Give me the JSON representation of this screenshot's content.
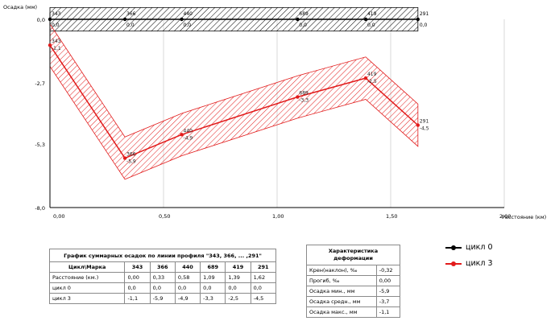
{
  "chart_data": {
    "type": "line",
    "ylabel": "Осадка (мм)",
    "xlabel": "Расстояние (км)",
    "xlim": [
      0,
      2.0
    ],
    "ylim": [
      -8.0,
      0.0
    ],
    "x_ticks": [
      "0,00",
      "0,50",
      "1,00",
      "1,50",
      "2,00"
    ],
    "y_ticks": [
      {
        "value": 0.0,
        "label": "0,0"
      },
      {
        "value": -2.7,
        "label": "-2,7"
      },
      {
        "value": -5.3,
        "label": "-5,3"
      },
      {
        "value": -8.0,
        "label": "-8,0"
      }
    ],
    "grid": "vertical",
    "legend_position": "right",
    "series": [
      {
        "name": "цикл 0",
        "color": "#000000",
        "x": [
          0.0,
          0.33,
          0.58,
          1.09,
          1.39,
          1.62
        ],
        "y": [
          0.0,
          0.0,
          0.0,
          0.0,
          0.0,
          0.0
        ],
        "point_labels": [
          "343",
          "366",
          "440",
          "689",
          "419",
          "291"
        ],
        "value_labels": [
          "0,0",
          "0,0",
          "0,0",
          "0,0",
          "0,0",
          "0,0"
        ]
      },
      {
        "name": "цикл 3",
        "color": "#e21b1b",
        "x": [
          0.0,
          0.33,
          0.58,
          1.09,
          1.39,
          1.62
        ],
        "y": [
          -1.1,
          -5.9,
          -4.9,
          -3.3,
          -2.5,
          -4.5
        ],
        "point_labels": [
          "343",
          "366",
          "440",
          "689",
          "419",
          "291"
        ],
        "value_labels": [
          "-1,1",
          "-5,9",
          "-4,9",
          "-3,3",
          "-2,5",
          "-4,5"
        ]
      }
    ],
    "bands": [
      {
        "series": "цикл 0",
        "half_width": 0.5
      },
      {
        "series": "цикл 3",
        "half_width": 0.9
      }
    ]
  },
  "summary_table": {
    "caption": "График суммарных осадок по линии профиля \"343, 366, ... ,291\"",
    "header": [
      "Цикл\\Марка",
      "343",
      "366",
      "440",
      "689",
      "419",
      "291"
    ],
    "rows": [
      [
        "Расстояние (км.)",
        "0,00",
        "0,33",
        "0,58",
        "1,09",
        "1,39",
        "1,62"
      ],
      [
        "цикл 0",
        "0,0",
        "0,0",
        "0,0",
        "0,0",
        "0,0",
        "0,0"
      ],
      [
        "цикл 3",
        "-1,1",
        "-5,9",
        "-4,9",
        "-3,3",
        "-2,5",
        "-4,5"
      ]
    ]
  },
  "characteristics_table": {
    "caption_line1": "Характеристика",
    "caption_line2": "деформации",
    "rows": [
      [
        "Крен(наклон), ‰",
        "-0,32"
      ],
      [
        "Прогиб, ‰",
        "0,00"
      ],
      [
        "Осадка мин., мм",
        "-5,9"
      ],
      [
        "Осадка средн., мм",
        "-3,7"
      ],
      [
        "Осадка макс., мм",
        "-1,1"
      ]
    ]
  },
  "legend": [
    {
      "label": "цикл 0",
      "color": "#000000"
    },
    {
      "label": "цикл 3",
      "color": "#e21b1b"
    }
  ]
}
